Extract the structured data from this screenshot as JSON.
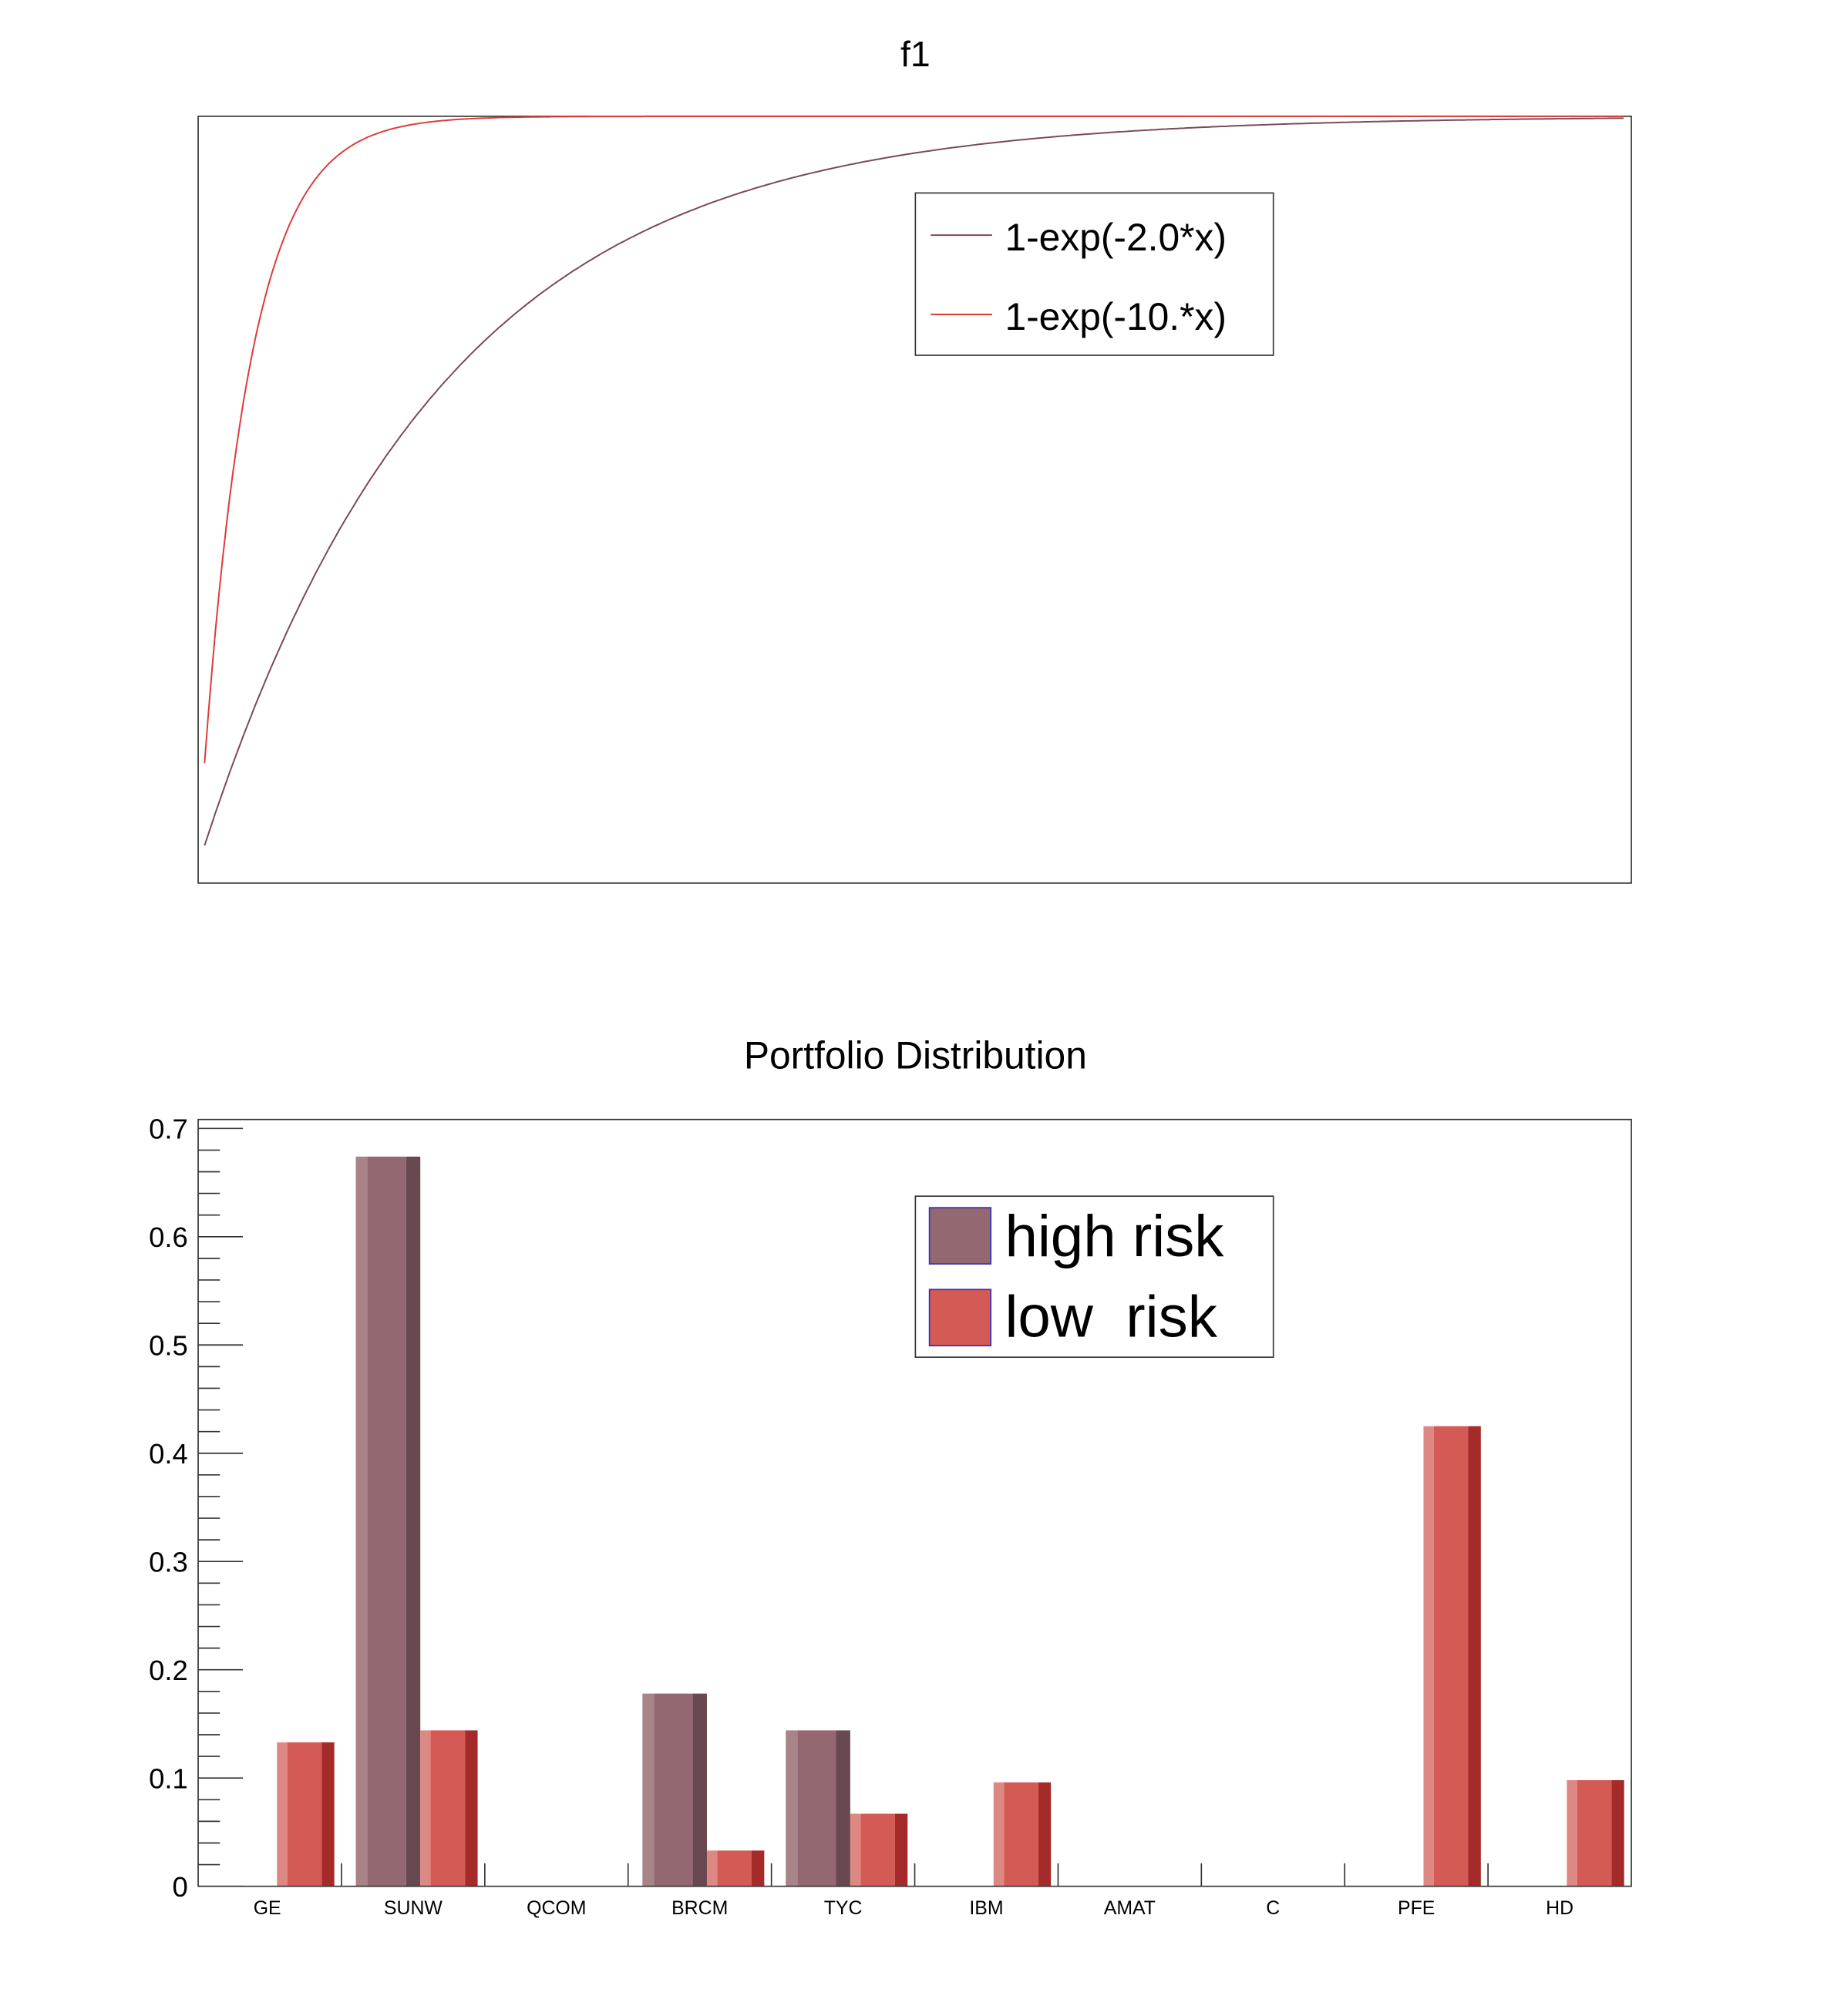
{
  "chart_data": [
    {
      "type": "line",
      "title": "f1",
      "xlim": [
        0,
        3
      ],
      "grid": false,
      "legend_placement": "top-right",
      "series": [
        {
          "name": "1-exp(-2.0*x)",
          "formula": "1-exp(-2.0*x)",
          "k": 2.0,
          "color": "#7a4a58"
        },
        {
          "name": "1-exp(-10.*x)",
          "formula": "1-exp(-10.*x)",
          "k": 10.0,
          "color": "#e03a3a"
        }
      ]
    },
    {
      "type": "bar",
      "title": "Portfolio Distribution",
      "ylim": [
        0,
        0.7
      ],
      "yticks": [
        "0",
        "0.1",
        "0.2",
        "0.3",
        "0.4",
        "0.5",
        "0.6",
        "0.7"
      ],
      "grid": false,
      "legend_placement": "top-right",
      "categories": [
        "GE",
        "SUNW",
        "QCOM",
        "BRCM",
        "TYC",
        "IBM",
        "AMAT",
        "C",
        "PFE",
        "HD"
      ],
      "series": [
        {
          "name": "high risk",
          "values": [
            0,
            0.674,
            0,
            0.178,
            0.144,
            0,
            0,
            0,
            0,
            0
          ],
          "color": "#946870",
          "light": "#a88388",
          "dark": "#694950"
        },
        {
          "name": "low  risk",
          "values": [
            0.133,
            0.144,
            0,
            0.033,
            0.067,
            0.096,
            0,
            0,
            0.425,
            0.098
          ],
          "color": "#d45a55",
          "light": "#de8883",
          "dark": "#a52b2a"
        }
      ]
    }
  ]
}
